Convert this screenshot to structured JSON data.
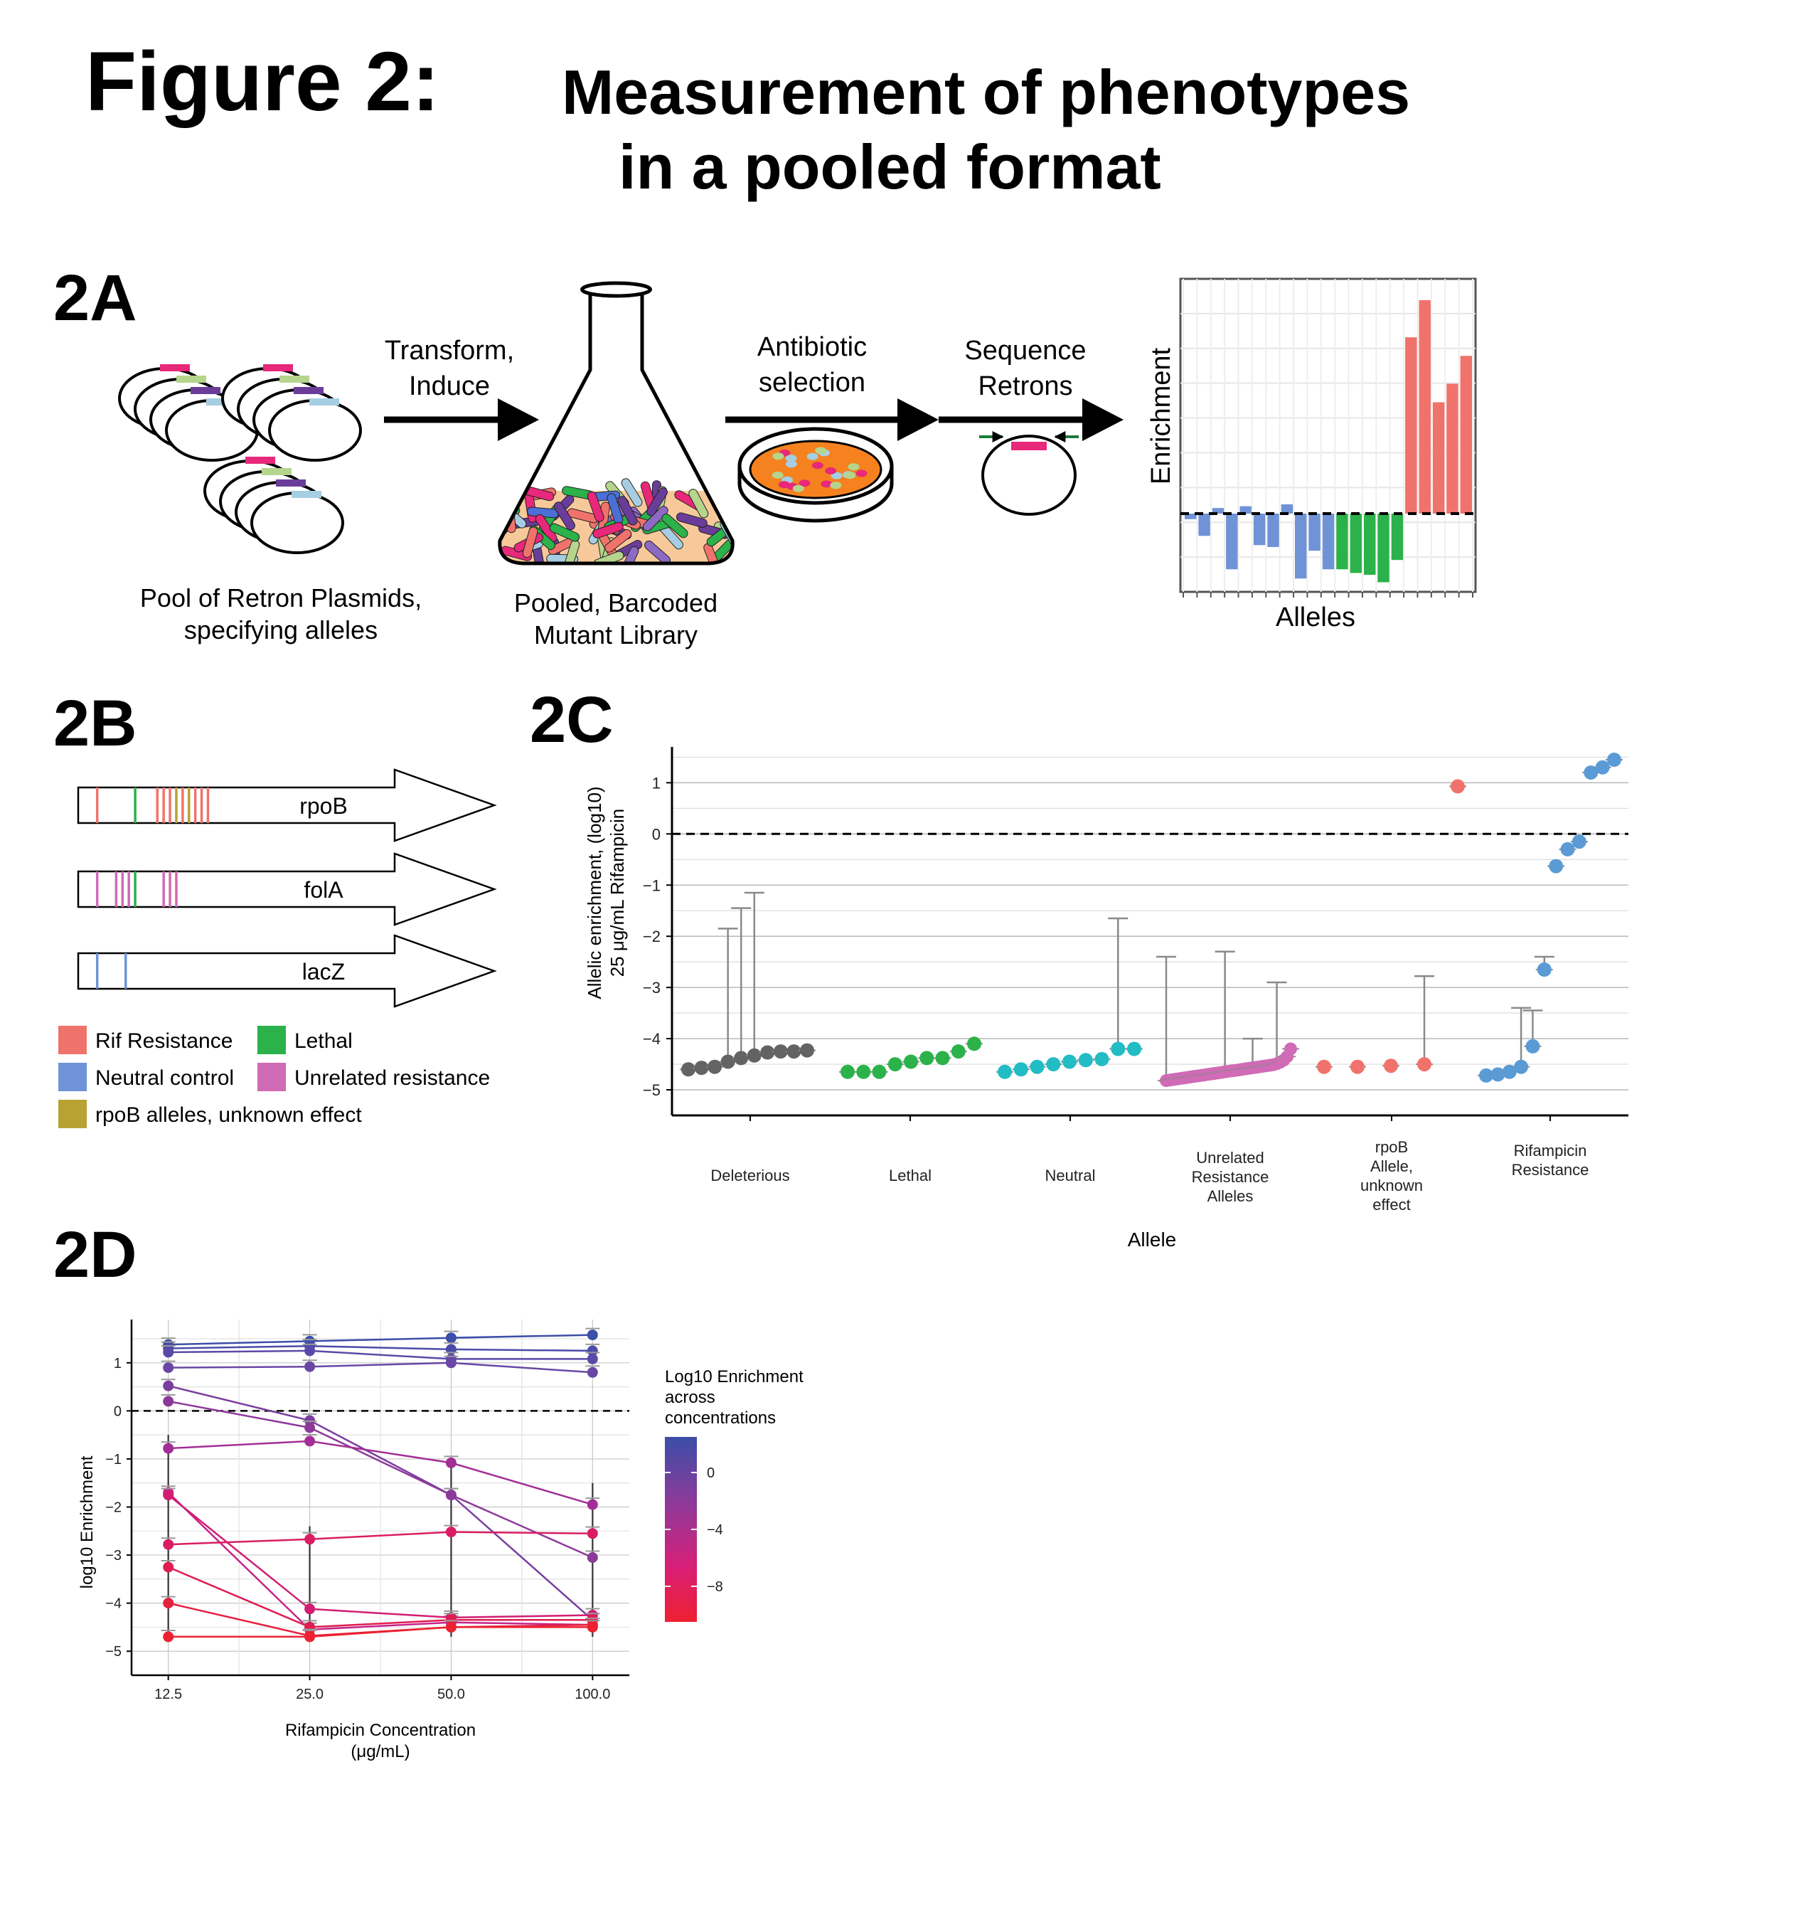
{
  "header": {
    "figure_label": "Figure 2:",
    "title_line1": "Measurement of phenotypes",
    "title_line2": "in a pooled format"
  },
  "panel_a": {
    "label": "2A",
    "step1_line1": "Transform,",
    "step1_line2": "Induce",
    "step2_line1": "Antibiotic",
    "step2_line2": "selection",
    "step3_line1": "Sequence",
    "step3_line2": "Retrons",
    "caption1_line1": "Pool of Retron Plasmids,",
    "caption1_line2": "specifying alleles",
    "caption2_line1": "Pooled, Barcoded",
    "caption2_line2": "Mutant Library",
    "mini_chart_ylabel": "Enrichment",
    "mini_chart_xlabel": "Alleles",
    "mini_chart_values": [
      -0.03,
      -0.12,
      0.03,
      -0.3,
      0.04,
      -0.17,
      -0.18,
      0.05,
      -0.35,
      -0.2,
      -0.3,
      -0.3,
      -0.32,
      -0.33,
      -0.37,
      -0.25,
      0.95,
      1.15,
      0.6,
      0.7,
      0.85
    ],
    "mini_chart_groups": [
      "neutral",
      "neutral",
      "neutral",
      "neutral",
      "neutral",
      "neutral",
      "neutral",
      "neutral",
      "neutral",
      "neutral",
      "neutral",
      "lethal",
      "lethal",
      "lethal",
      "lethal",
      "lethal",
      "rif",
      "rif",
      "rif",
      "rif",
      "rif"
    ],
    "colors": {
      "neutral": "#6f93d6",
      "lethal": "#2bb24a",
      "rif": "#f0736b",
      "pink": "#e8287a",
      "lightgreen": "#b5d58c",
      "purple": "#6a3d9a",
      "lightblue": "#a6cee3",
      "plate": "#f5821f"
    }
  },
  "panel_b": {
    "label": "2B",
    "genes": [
      {
        "name": "rpoB",
        "marks": [
          {
            "pos": 0.06,
            "type": "rif"
          },
          {
            "pos": 0.18,
            "type": "lethal"
          },
          {
            "pos": 0.25,
            "type": "rif"
          },
          {
            "pos": 0.27,
            "type": "rif"
          },
          {
            "pos": 0.29,
            "type": "rif"
          },
          {
            "pos": 0.31,
            "type": "unknown"
          },
          {
            "pos": 0.33,
            "type": "rif"
          },
          {
            "pos": 0.35,
            "type": "unknown"
          },
          {
            "pos": 0.37,
            "type": "rif"
          },
          {
            "pos": 0.39,
            "type": "rif"
          },
          {
            "pos": 0.41,
            "type": "rif"
          }
        ]
      },
      {
        "name": "folA",
        "marks": [
          {
            "pos": 0.06,
            "type": "unrelated"
          },
          {
            "pos": 0.12,
            "type": "unrelated"
          },
          {
            "pos": 0.14,
            "type": "unrelated"
          },
          {
            "pos": 0.16,
            "type": "unrelated"
          },
          {
            "pos": 0.18,
            "type": "lethal"
          },
          {
            "pos": 0.27,
            "type": "unrelated"
          },
          {
            "pos": 0.29,
            "type": "unrelated"
          },
          {
            "pos": 0.31,
            "type": "unrelated"
          }
        ]
      },
      {
        "name": "lacZ",
        "marks": [
          {
            "pos": 0.06,
            "type": "neutral"
          },
          {
            "pos": 0.15,
            "type": "neutral"
          }
        ]
      }
    ],
    "legend": [
      {
        "key": "rif",
        "label": "Rif Resistance",
        "color": "#f0736b"
      },
      {
        "key": "lethal",
        "label": "Lethal",
        "color": "#2bb24a"
      },
      {
        "key": "neutral",
        "label": "Neutral control",
        "color": "#6f93d6"
      },
      {
        "key": "unrelated",
        "label": "Unrelated resistance",
        "color": "#d06bb5"
      },
      {
        "key": "unknown",
        "label": "rpoB alleles, unknown effect",
        "color": "#b8a232"
      }
    ]
  },
  "panel_c": {
    "label": "2C",
    "chart_data": {
      "type": "scatter",
      "ylabel_line1": "Allelic enrichment, (log10)",
      "ylabel_line2": "25 μg/mL Rifampicin",
      "xlabel": "Allele",
      "ylim": [
        -5.5,
        1.7
      ],
      "yticks": [
        1,
        0,
        -1,
        -2,
        -3,
        -4,
        -5
      ],
      "ytick_labels": [
        "1",
        "0",
        "−1",
        "−2",
        "−3",
        "−4",
        "−5"
      ],
      "reference_line": 0,
      "groups": [
        {
          "name": "Deleterious",
          "label_lines": [
            "Deleterious"
          ],
          "color": "#636363",
          "values": [
            -4.6,
            -4.57,
            -4.55,
            -4.45,
            -4.38,
            -4.33,
            -4.27,
            -4.25,
            -4.25,
            -4.23
          ],
          "err_up": [
            null,
            null,
            null,
            -1.85,
            -1.45,
            -1.15,
            null,
            null,
            null,
            null
          ]
        },
        {
          "name": "Lethal",
          "label_lines": [
            "Lethal"
          ],
          "color": "#2bb24a",
          "values": [
            -4.65,
            -4.65,
            -4.65,
            -4.5,
            -4.45,
            -4.38,
            -4.38,
            -4.25,
            -4.1
          ],
          "err_up": [
            null,
            null,
            null,
            null,
            null,
            null,
            null,
            null,
            null
          ]
        },
        {
          "name": "Neutral",
          "label_lines": [
            "Neutral"
          ],
          "color": "#22bcc4",
          "values": [
            -4.65,
            -4.6,
            -4.55,
            -4.5,
            -4.45,
            -4.42,
            -4.4,
            -4.2,
            -4.2
          ],
          "err_up": [
            null,
            null,
            null,
            null,
            null,
            null,
            null,
            -1.65,
            null
          ]
        },
        {
          "name": "Unrelated Resistance Alleles",
          "label_lines": [
            "Unrelated",
            "Resistance",
            "Alleles"
          ],
          "color": "#d06bb5",
          "values": [
            -4.82,
            -4.81,
            -4.8,
            -4.79,
            -4.78,
            -4.77,
            -4.76,
            -4.75,
            -4.74,
            -4.73,
            -4.72,
            -4.71,
            -4.7,
            -4.69,
            -4.68,
            -4.67,
            -4.66,
            -4.65,
            -4.64,
            -4.63,
            -4.62,
            -4.61,
            -4.6,
            -4.59,
            -4.58,
            -4.57,
            -4.56,
            -4.55,
            -4.54,
            -4.53,
            -4.52,
            -4.51,
            -4.49,
            -4.46,
            -4.42,
            -4.35,
            -4.2
          ],
          "err_up": {
            "0": -2.4,
            "17": -2.3,
            "25": -4.0,
            "32": -2.9
          }
        },
        {
          "name": "rpoB Allele, unknown effect",
          "label_lines": [
            "rpoB",
            "Allele,",
            "unknown",
            "effect"
          ],
          "color": "#f0736b",
          "values": [
            -4.55,
            -4.55,
            -4.53,
            -4.5,
            0.93
          ],
          "err_up": [
            null,
            null,
            null,
            -2.78,
            null
          ]
        },
        {
          "name": "Rifampicin Resistance",
          "label_lines": [
            "Rifampicin",
            "Resistance"
          ],
          "color": "#5b9bd5",
          "values": [
            -4.72,
            -4.7,
            -4.65,
            -4.55,
            -4.15,
            -2.65,
            -0.63,
            -0.3,
            -0.15,
            1.2,
            1.3,
            1.45
          ],
          "err_up": [
            null,
            null,
            null,
            -3.4,
            -3.45,
            -2.4,
            null,
            null,
            null,
            null,
            null,
            null
          ]
        }
      ]
    }
  },
  "panel_d": {
    "label": "2D",
    "chart_data": {
      "type": "line",
      "xlabel_line1": "Rifampicin Concentration",
      "xlabel_line2": "(μg/mL)",
      "ylabel": "log10 Enrichment",
      "x": [
        12.5,
        25.0,
        50.0,
        100.0
      ],
      "x_tick_labels": [
        "12.5",
        "25.0",
        "50.0",
        "100.0"
      ],
      "x_scale": "log",
      "ylim": [
        -5.5,
        1.9
      ],
      "yticks": [
        1,
        0,
        -1,
        -2,
        -3,
        -4,
        -5
      ],
      "ytick_labels": [
        "1",
        "0",
        "−1",
        "−2",
        "−3",
        "−4",
        "−5"
      ],
      "reference_line": 0,
      "legend_title_lines": [
        "Log10 Enrichment",
        "across",
        "concentrations"
      ],
      "legend_ticks": [
        "0",
        "−4",
        "−8"
      ],
      "legend_tick_values": [
        0,
        -4,
        -8
      ],
      "legend_range": [
        -10.5,
        2.5
      ],
      "series": [
        {
          "values": [
            1.38,
            1.45,
            1.52,
            1.58
          ],
          "color": "#3b4ea8"
        },
        {
          "values": [
            1.3,
            1.35,
            1.28,
            1.25
          ],
          "color": "#4a4ca8"
        },
        {
          "values": [
            1.22,
            1.25,
            1.08,
            1.08
          ],
          "color": "#5a4aa8"
        },
        {
          "values": [
            0.9,
            0.92,
            1.0,
            0.8
          ],
          "color": "#6a47a4"
        },
        {
          "values": [
            0.52,
            -0.2,
            -1.75,
            -4.35
          ],
          "color": "#7a3f9e"
        },
        {
          "values": [
            0.2,
            -0.35,
            -1.75,
            -3.05
          ],
          "color": "#8c3a9a"
        },
        {
          "values": [
            -0.78,
            -0.63,
            -1.08,
            -1.95
          ],
          "color": "#a32f96"
        },
        {
          "values": [
            -1.7,
            -4.55,
            -4.4,
            -4.45
          ],
          "color": "#c5248a"
        },
        {
          "values": [
            -1.75,
            -4.12,
            -4.3,
            -4.25
          ],
          "color": "#d11e72"
        },
        {
          "values": [
            -2.78,
            -2.67,
            -2.52,
            -2.55
          ],
          "color": "#d91d63"
        },
        {
          "values": [
            -3.25,
            -4.5,
            -4.35,
            -4.35
          ],
          "color": "#e01d50"
        },
        {
          "values": [
            -4.0,
            -4.68,
            -4.5,
            -4.45
          ],
          "color": "#e6203f"
        },
        {
          "values": [
            -4.7,
            -4.7,
            -4.5,
            -4.5
          ],
          "color": "#ec2232"
        }
      ]
    }
  }
}
